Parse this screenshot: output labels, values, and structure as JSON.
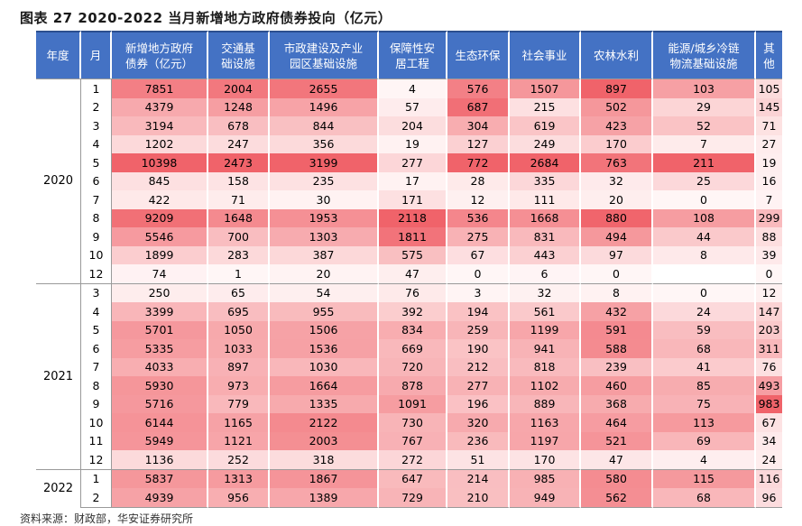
{
  "title": "图表 27 2020-2022 当月新增地方政府债券投向（亿元）",
  "source_note": "资料来源：财政部，华安证券研究所",
  "colors": {
    "header_bg": "#4472C4",
    "heat_max": "#F0636A",
    "heat_min": "#FFFFFF"
  },
  "columns": [
    "年度",
    "月",
    "新增地方政府\n债券（亿元）",
    "交通基\n础设施",
    "市政建设及产业\n园区基础设施",
    "保障性安\n居工程",
    "生态环保",
    "社会事业",
    "农林水利",
    "能源/城乡冷链\n物流基础设施",
    "其\n他"
  ],
  "groups": [
    {
      "year": "2020",
      "rows": [
        {
          "month": "1",
          "values": [
            "7851",
            "2004",
            "2655",
            "4",
            "576",
            "1507",
            "897",
            "103",
            "105"
          ]
        },
        {
          "month": "2",
          "values": [
            "4379",
            "1248",
            "1496",
            "57",
            "687",
            "215",
            "502",
            "29",
            "145"
          ]
        },
        {
          "month": "3",
          "values": [
            "3194",
            "678",
            "844",
            "204",
            "304",
            "619",
            "423",
            "52",
            "71"
          ]
        },
        {
          "month": "4",
          "values": [
            "1202",
            "247",
            "356",
            "19",
            "127",
            "249",
            "170",
            "7",
            "27"
          ]
        },
        {
          "month": "5",
          "values": [
            "10398",
            "2473",
            "3199",
            "277",
            "772",
            "2684",
            "763",
            "211",
            "19"
          ]
        },
        {
          "month": "6",
          "values": [
            "845",
            "158",
            "235",
            "17",
            "28",
            "335",
            "32",
            "25",
            "16"
          ]
        },
        {
          "month": "7",
          "values": [
            "422",
            "71",
            "30",
            "171",
            "12",
            "111",
            "20",
            "0",
            "7"
          ]
        },
        {
          "month": "8",
          "values": [
            "9209",
            "1648",
            "1953",
            "2118",
            "536",
            "1668",
            "880",
            "108",
            "299"
          ]
        },
        {
          "month": "9",
          "values": [
            "5546",
            "700",
            "1303",
            "1811",
            "275",
            "831",
            "494",
            "44",
            "88"
          ]
        },
        {
          "month": "10",
          "values": [
            "1899",
            "283",
            "387",
            "575",
            "67",
            "443",
            "97",
            "8",
            "39"
          ]
        },
        {
          "month": "12",
          "values": [
            "74",
            "1",
            "20",
            "47",
            "0",
            "6",
            "0",
            "",
            "0"
          ]
        }
      ]
    },
    {
      "year": "2021",
      "rows": [
        {
          "month": "3",
          "values": [
            "250",
            "65",
            "54",
            "76",
            "3",
            "32",
            "8",
            "0",
            "12"
          ]
        },
        {
          "month": "4",
          "values": [
            "3399",
            "695",
            "955",
            "392",
            "194",
            "561",
            "432",
            "24",
            "147"
          ]
        },
        {
          "month": "5",
          "values": [
            "5701",
            "1050",
            "1506",
            "834",
            "259",
            "1199",
            "591",
            "59",
            "203"
          ]
        },
        {
          "month": "6",
          "values": [
            "5335",
            "1033",
            "1536",
            "669",
            "190",
            "941",
            "588",
            "68",
            "311"
          ]
        },
        {
          "month": "7",
          "values": [
            "4033",
            "897",
            "1030",
            "720",
            "212",
            "818",
            "239",
            "41",
            "76"
          ]
        },
        {
          "month": "8",
          "values": [
            "5930",
            "973",
            "1664",
            "878",
            "277",
            "1102",
            "460",
            "85",
            "493"
          ]
        },
        {
          "month": "9",
          "values": [
            "5716",
            "779",
            "1335",
            "1091",
            "196",
            "889",
            "368",
            "75",
            "983"
          ]
        },
        {
          "month": "10",
          "values": [
            "6144",
            "1165",
            "2122",
            "730",
            "320",
            "1163",
            "464",
            "113",
            "67"
          ]
        },
        {
          "month": "11",
          "values": [
            "5949",
            "1121",
            "2003",
            "767",
            "236",
            "1197",
            "521",
            "69",
            "34"
          ]
        },
        {
          "month": "12",
          "values": [
            "1136",
            "252",
            "318",
            "272",
            "51",
            "170",
            "47",
            "4",
            "24"
          ]
        }
      ]
    },
    {
      "year": "2022",
      "rows": [
        {
          "month": "1",
          "values": [
            "5837",
            "1313",
            "1867",
            "647",
            "214",
            "985",
            "580",
            "115",
            "116"
          ]
        },
        {
          "month": "2",
          "values": [
            "4939",
            "956",
            "1389",
            "729",
            "210",
            "949",
            "562",
            "68",
            "96"
          ]
        }
      ]
    }
  ]
}
